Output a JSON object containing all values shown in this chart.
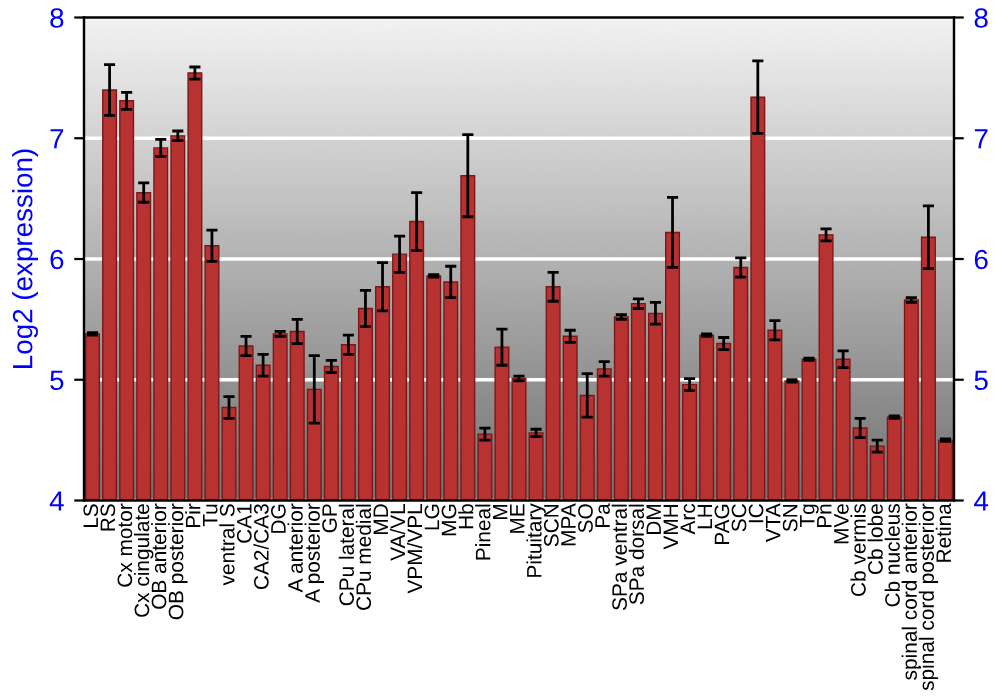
{
  "chart_data": {
    "type": "bar",
    "ylabel": "Log2 (expression)",
    "categories": [
      "LS",
      "RS",
      "Cx motor",
      "Cx cingulate",
      "OB anterior",
      "OB posterior",
      "Pir",
      "Tu",
      "ventral S",
      "CA1",
      "CA2/CA3",
      "DG",
      "A anterior",
      "A posterior",
      "GP",
      "CPu lateral",
      "CPu medial",
      "MD",
      "VA/VL",
      "VPM/VPL",
      "LG",
      "MG",
      "Hb",
      "Pineal",
      "M",
      "ME",
      "Pituitary",
      "SCN",
      "MPA",
      "SO",
      "Pa",
      "SPa ventral",
      "SPa dorsal",
      "DM",
      "VMH",
      "Arc",
      "LH",
      "PAG",
      "SC",
      "IC",
      "VTA",
      "SN",
      "Tg",
      "Pn",
      "MVe",
      "Cb vermis",
      "Cb lobe",
      "Cb nucleus",
      "spinal cord anterior",
      "spinal cord posterior",
      "Retina"
    ],
    "values": [
      5.38,
      7.4,
      7.31,
      6.55,
      6.92,
      7.02,
      7.54,
      6.11,
      4.77,
      5.28,
      5.12,
      5.38,
      5.4,
      4.92,
      5.11,
      5.29,
      5.59,
      5.77,
      6.04,
      6.31,
      5.86,
      5.81,
      6.69,
      4.55,
      5.27,
      5.01,
      4.56,
      5.77,
      5.36,
      4.87,
      5.09,
      5.52,
      5.63,
      5.55,
      6.22,
      4.96,
      5.37,
      5.3,
      5.93,
      7.34,
      5.41,
      4.99,
      5.17,
      6.2,
      5.17,
      4.6,
      4.45,
      4.69,
      5.66,
      6.18,
      4.5
    ],
    "errors": [
      0.01,
      0.21,
      0.07,
      0.08,
      0.07,
      0.04,
      0.05,
      0.13,
      0.09,
      0.08,
      0.09,
      0.02,
      0.1,
      0.28,
      0.05,
      0.08,
      0.15,
      0.2,
      0.15,
      0.24,
      0.01,
      0.13,
      0.34,
      0.05,
      0.15,
      0.02,
      0.03,
      0.12,
      0.05,
      0.18,
      0.06,
      0.02,
      0.04,
      0.09,
      0.29,
      0.05,
      0.01,
      0.05,
      0.08,
      0.3,
      0.08,
      0.01,
      0.01,
      0.05,
      0.07,
      0.08,
      0.05,
      0.01,
      0.02,
      0.26,
      0.01
    ],
    "color": "#b83232",
    "ylim": [
      4,
      8
    ],
    "yticks": [
      4,
      5,
      6,
      7,
      8
    ],
    "y2lim": [
      4,
      8
    ],
    "y2ticks": [
      4,
      5,
      6,
      7,
      8
    ],
    "grid": "y"
  }
}
